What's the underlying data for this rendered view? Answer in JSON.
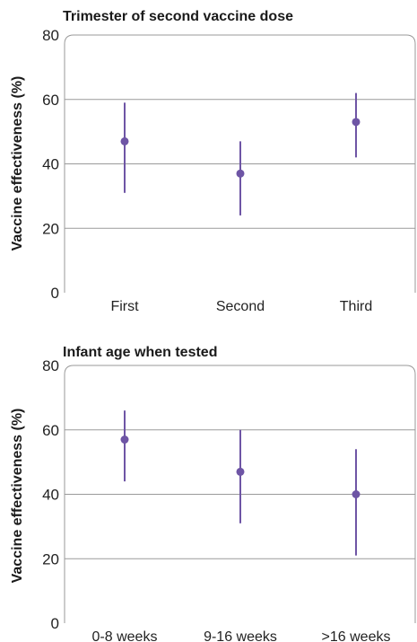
{
  "chart_data": [
    {
      "type": "scatter",
      "title": "Trimester of second vaccine dose",
      "xlabel": "",
      "ylabel": "Vaccine effectiveness (%)",
      "ylim": [
        0,
        80
      ],
      "yticks": [
        "0",
        "20",
        "40",
        "60",
        "80"
      ],
      "categories": [
        "First",
        "Second",
        "Third"
      ],
      "series": [
        {
          "values": [
            47,
            37,
            53
          ],
          "ci_low": [
            31,
            24,
            42
          ],
          "ci_high": [
            59,
            47,
            62
          ]
        }
      ],
      "grid": true,
      "color": "#6e55a5"
    },
    {
      "type": "scatter",
      "title": "Infant age when tested",
      "xlabel": "",
      "ylabel": "Vaccine effectiveness (%)",
      "ylim": [
        0,
        80
      ],
      "yticks": [
        "0",
        "20",
        "40",
        "60",
        "80"
      ],
      "categories": [
        "0-8 weeks",
        "9-16 weeks",
        ">16 weeks"
      ],
      "series": [
        {
          "values": [
            57,
            47,
            40
          ],
          "ci_low": [
            44,
            31,
            21
          ],
          "ci_high": [
            66,
            60,
            54
          ]
        }
      ],
      "grid": true,
      "color": "#6e55a5"
    }
  ]
}
